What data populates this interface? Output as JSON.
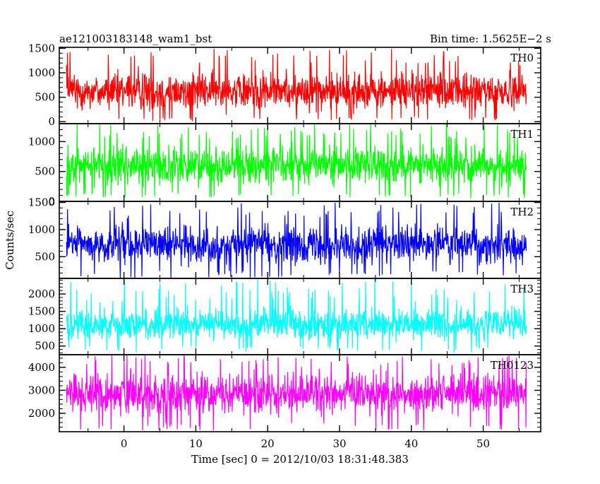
{
  "header": {
    "title": "ae121003183148_wam1_bst",
    "bin_time": "Bin time: 1.5625E−2 s"
  },
  "axes": {
    "ylabel": "Counts/sec",
    "xlabel": "Time [sec] 0 = 2012/10/03 18:31:48.383"
  },
  "chart_data": {
    "type": "line",
    "title": "ae121003183148_wam1_bst",
    "subtitle": "Bin time: 1.5625E−2 s",
    "xlabel": "Time [sec] 0 = 2012/10/03 18:31:48.383",
    "ylabel": "Counts/sec",
    "xlim": [
      -9,
      58
    ],
    "xticks": [
      0,
      10,
      20,
      30,
      40,
      50
    ],
    "x_range_data": [
      -8,
      56
    ],
    "bin_time_sec": 0.015625,
    "grid": false,
    "legend": "none",
    "panels": [
      {
        "name": "TH0",
        "color": "#ff0000",
        "ylim": [
          -40,
          1520
        ],
        "yticks": [
          0,
          500,
          1000,
          1500
        ],
        "mean": 620,
        "typical_low": 100,
        "typical_high": 1150,
        "peak_max": 1500,
        "dip_min": 0
      },
      {
        "name": "TH1",
        "color": "#00ff00",
        "ylim": [
          0,
          1300
        ],
        "yticks": [
          0,
          500,
          1000
        ],
        "mean": 620,
        "typical_low": 150,
        "typical_high": 1050,
        "peak_max": 1300,
        "dip_min": 50
      },
      {
        "name": "TH2",
        "color": "#0000ff",
        "ylim": [
          100,
          1520
        ],
        "yticks": [
          500,
          1000,
          1500
        ],
        "mean": 720,
        "typical_low": 250,
        "typical_high": 1200,
        "peak_max": 1500,
        "dip_min": 100
      },
      {
        "name": "TH3",
        "color": "#00ffff",
        "ylim": [
          250,
          2450
        ],
        "yticks": [
          500,
          1000,
          1500,
          2000
        ],
        "mean": 1100,
        "typical_low": 500,
        "typical_high": 1750,
        "peak_max": 2450,
        "dip_min": 300
      },
      {
        "name": "TH0123",
        "color": "#ff00ff",
        "ylim": [
          1200,
          4550
        ],
        "yticks": [
          2000,
          3000,
          4000
        ],
        "mean": 2900,
        "typical_low": 1600,
        "typical_high": 4100,
        "peak_max": 4550,
        "dip_min": 1250
      }
    ]
  }
}
